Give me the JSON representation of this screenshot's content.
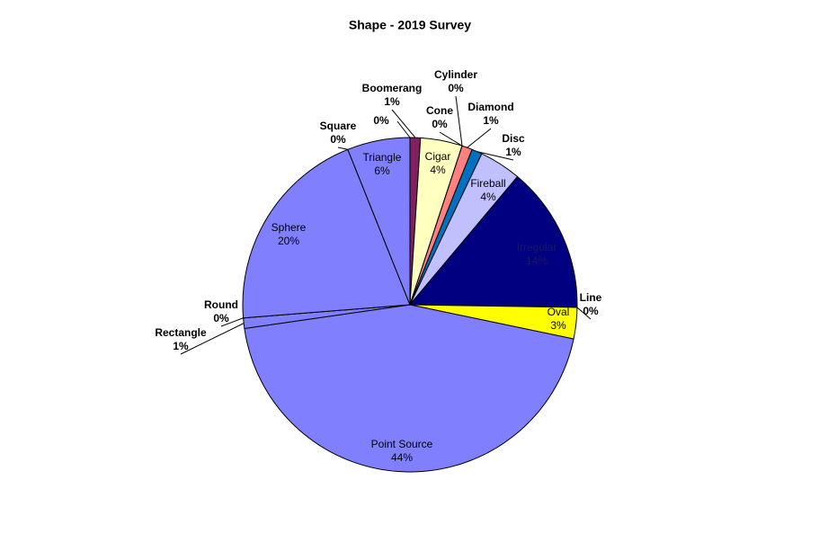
{
  "chart_data": {
    "type": "pie",
    "title": "Shape - 2019 Survey",
    "categories": [
      "Boomerang",
      "Cigar",
      "Cone",
      "Cylinder",
      "Diamond",
      "Disc",
      "Fireball",
      "Irregular",
      "Line",
      "Oval",
      "Point Source",
      "Rectangle",
      "Round",
      "Sphere",
      "Square",
      "Triangle",
      null
    ],
    "values": [
      1,
      4,
      0,
      0,
      1,
      1,
      4,
      14,
      0,
      3,
      44,
      1,
      0,
      20,
      0,
      6,
      0
    ],
    "value_labels": [
      "1%",
      "4%",
      "0%",
      "0%",
      "1%",
      "1%",
      "4%",
      "14%",
      "0%",
      "3%",
      "44%",
      "1%",
      "0%",
      "20%",
      "0%",
      "6%",
      "0%"
    ],
    "colors": [
      "#802060",
      "#ffffc0",
      "#a0e0e0",
      "#600080",
      "#ff8080",
      "#0070c0",
      "#c0c0ff",
      "#000080",
      "#ff00ff",
      "#ffff00",
      "#8080ff",
      "#8080ff",
      "#8080ff",
      "#8080ff",
      "#8080ff",
      "#8080ff",
      "#8080ff"
    ]
  }
}
